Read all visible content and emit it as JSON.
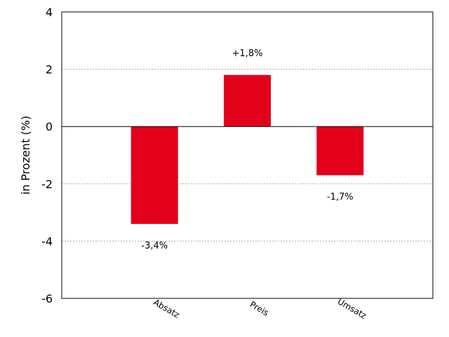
{
  "chart_data": {
    "type": "bar",
    "title": "",
    "xlabel": "",
    "ylabel": "in Prozent (%)",
    "categories": [
      "Absatz",
      "Preis",
      "Umsatz"
    ],
    "values": [
      -3.4,
      1.8,
      -1.7
    ],
    "data_labels": [
      "-3,4%",
      "+1,8%",
      "-1,7%"
    ],
    "ylim": [
      -6,
      4
    ],
    "yticks": [
      -6,
      -4,
      -2,
      0,
      2,
      4
    ],
    "ytick_labels": [
      "-6",
      "-4",
      "-2",
      "0",
      "2",
      "4"
    ],
    "grid": true,
    "bar_color": "#e3001b",
    "grid_color": "#aaaaaa"
  }
}
